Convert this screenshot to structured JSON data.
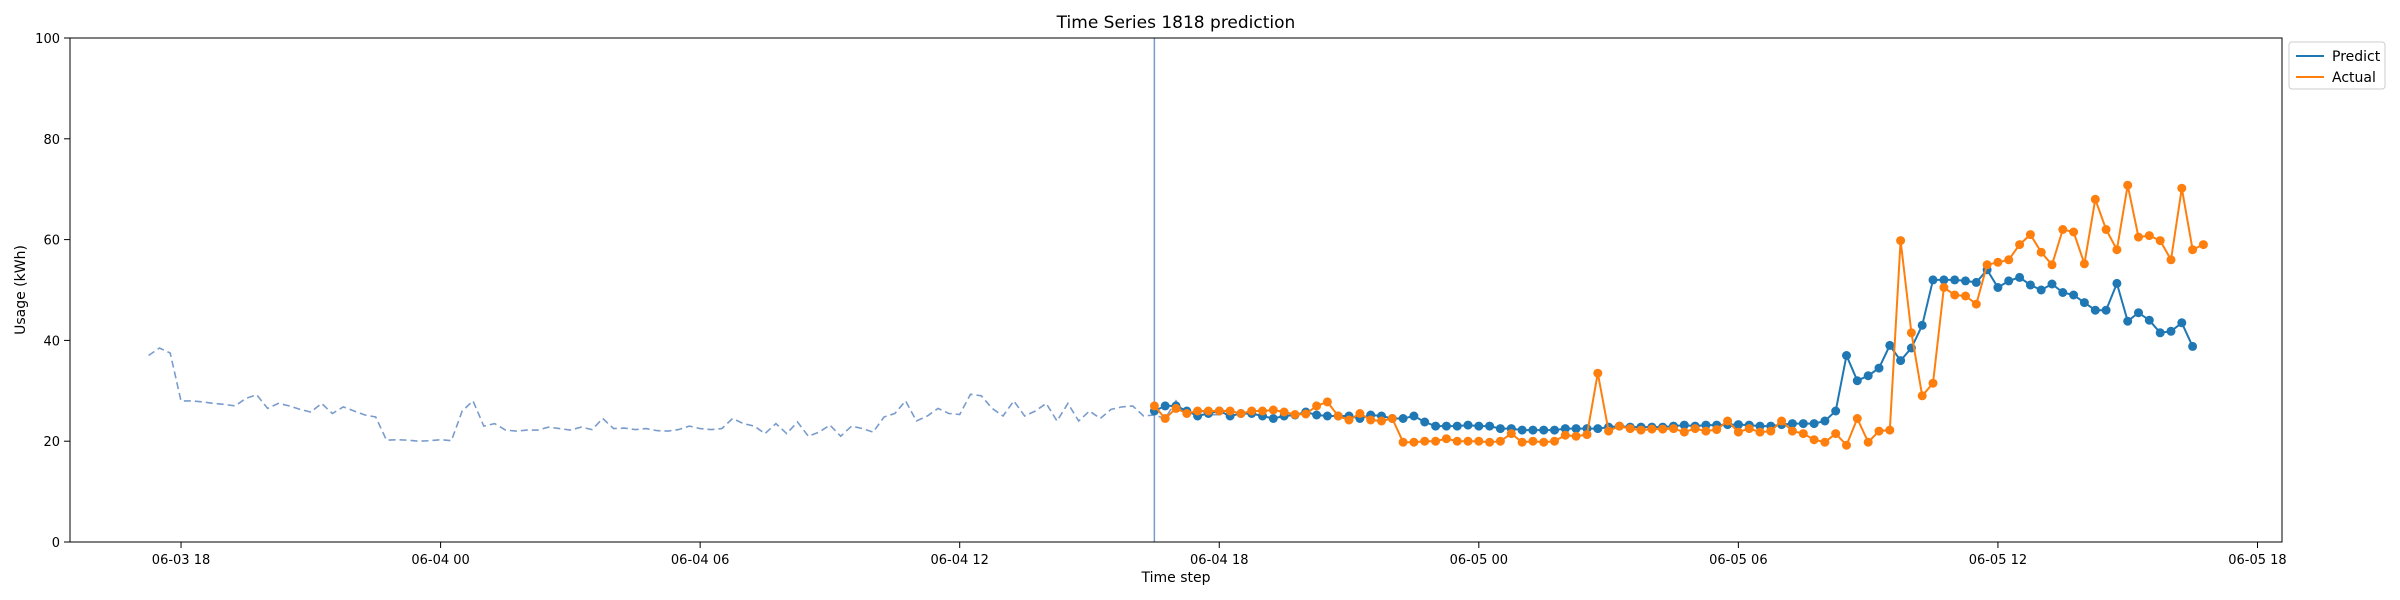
{
  "chart_data": {
    "type": "line",
    "title": "Time Series 1818 prediction",
    "xlabel": "Time step",
    "ylabel": "Usage (kWh)",
    "ylim": [
      0,
      100
    ],
    "yticks": [
      0,
      20,
      40,
      60,
      80,
      100
    ],
    "xlim": [
      "2024-06-03 15:26",
      "2024-06-05 18:34"
    ],
    "xticks": [
      {
        "t": "2024-06-03 18:00",
        "label": "06-03 18"
      },
      {
        "t": "2024-06-04 00:00",
        "label": "06-04 00"
      },
      {
        "t": "2024-06-04 06:00",
        "label": "06-04 06"
      },
      {
        "t": "2024-06-04 12:00",
        "label": "06-04 12"
      },
      {
        "t": "2024-06-04 18:00",
        "label": "06-04 18"
      },
      {
        "t": "2024-06-05 00:00",
        "label": "06-05 00"
      },
      {
        "t": "2024-06-05 06:00",
        "label": "06-05 06"
      },
      {
        "t": "2024-06-05 12:00",
        "label": "06-05 12"
      },
      {
        "t": "2024-06-05 18:00",
        "label": "06-05 18"
      }
    ],
    "forecast_start": "2024-06-04 16:30",
    "interval_minutes": 15,
    "legend_position": "top-right",
    "grid": false,
    "history": {
      "start": "2024-06-03 17:15",
      "color": "#7a9ccc",
      "style": "dashed",
      "values": [
        37,
        38.5,
        37.5,
        28,
        28,
        27.8,
        27.5,
        27.3,
        27,
        28.5,
        29.2,
        26.5,
        27.5,
        27,
        26.3,
        25.8,
        27.5,
        25.5,
        26.8,
        26,
        25.2,
        24.8,
        20.2,
        20.3,
        20.2,
        20,
        20.1,
        20.3,
        20.1,
        26,
        28,
        23,
        23.5,
        22.2,
        22,
        22.2,
        22.2,
        22.8,
        22.5,
        22.2,
        22.8,
        22.3,
        24.5,
        22.5,
        22.6,
        22.3,
        22.5,
        22.1,
        22,
        22.3,
        23,
        22.5,
        22.3,
        22.5,
        24.5,
        23.5,
        23,
        21.5,
        23.5,
        21.5,
        23.8,
        21,
        21.8,
        23.2,
        21,
        23,
        22.5,
        21.8,
        24.8,
        25.5,
        28,
        24,
        25,
        26.5,
        25.5,
        25.3,
        29.3,
        29,
        26.5,
        25,
        28,
        25,
        26,
        27.5,
        24,
        27.5,
        24,
        26,
        24.5,
        26.3,
        26.8,
        27,
        25,
        25.2,
        24.5,
        28,
        24.8,
        26.5,
        25.2,
        25.3,
        26.6
      ]
    },
    "series": [
      {
        "name": "Predict",
        "color": "#1f77b4",
        "start": "2024-06-04 16:30",
        "values": [
          26,
          27,
          27,
          26,
          25,
          25.5,
          26,
          25,
          25.5,
          25.5,
          25,
          24.5,
          25,
          25.2,
          25.8,
          25.2,
          25,
          25,
          25,
          24.5,
          25.2,
          25,
          24.5,
          24.5,
          25,
          23.8,
          23,
          23,
          23,
          23.2,
          23,
          23,
          22.5,
          22.5,
          22.2,
          22.2,
          22.2,
          22.2,
          22.5,
          22.5,
          22.5,
          22.5,
          22.8,
          23,
          22.8,
          22.8,
          22.8,
          22.8,
          23,
          23.2,
          23,
          23.2,
          23.2,
          23.3,
          23.3,
          23.2,
          23,
          23,
          23.3,
          23.5,
          23.5,
          23.5,
          24,
          26,
          37,
          32,
          33,
          34.5,
          39,
          36,
          38.5,
          43,
          52,
          52,
          52,
          51.8,
          51.5,
          54,
          50.5,
          51.8,
          52.5,
          51,
          50,
          51.2,
          49.5,
          49,
          47.5,
          46,
          46,
          51.3,
          43.8,
          45.5,
          44,
          41.5,
          41.8,
          43.5,
          38.8
        ]
      },
      {
        "name": "Actual",
        "color": "#ff7f0e",
        "start": "2024-06-04 16:30",
        "values": [
          27,
          24.5,
          26.5,
          25.5,
          26,
          26,
          26,
          26,
          25.5,
          26,
          26,
          26.2,
          25.8,
          25.3,
          25.4,
          27,
          27.8,
          25,
          24.2,
          25.5,
          24.2,
          24,
          24.5,
          19.8,
          19.8,
          20,
          20,
          20.5,
          20,
          20,
          20,
          19.8,
          20,
          21.5,
          19.8,
          20,
          19.8,
          20,
          21.2,
          21,
          21.3,
          33.5,
          22,
          23,
          22.5,
          22.2,
          22.4,
          22.4,
          22.5,
          21.8,
          22.5,
          22,
          22.3,
          24,
          21.8,
          22.5,
          21.8,
          22,
          24,
          22,
          21.5,
          20.3,
          19.8,
          21.5,
          19.2,
          24.5,
          19.8,
          22,
          22.2,
          59.8,
          41.5,
          29,
          31.5,
          50.5,
          49,
          48.8,
          47.2,
          55,
          55.5,
          56,
          59,
          61,
          57.5,
          55,
          62,
          61.5,
          55.2,
          68,
          62,
          58,
          70.8,
          60.5,
          60.8,
          59.8,
          56,
          70.2,
          58,
          59
        ]
      }
    ]
  }
}
